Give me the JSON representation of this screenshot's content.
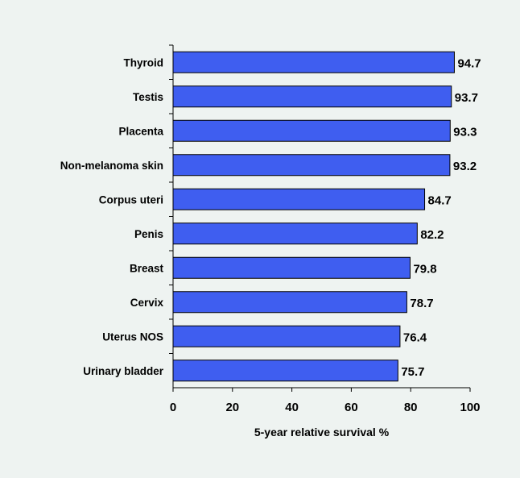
{
  "chart_data": {
    "type": "bar",
    "orientation": "horizontal",
    "categories": [
      "Thyroid",
      "Testis",
      "Placenta",
      "Non-melanoma skin",
      "Corpus uteri",
      "Penis",
      "Breast",
      "Cervix",
      "Uterus NOS",
      "Urinary bladder"
    ],
    "values": [
      94.7,
      93.7,
      93.3,
      93.2,
      84.7,
      82.2,
      79.8,
      78.7,
      76.4,
      75.7
    ],
    "value_labels": [
      "94.7",
      "93.7",
      "93.3",
      "93.2",
      "84.7",
      "82.2",
      "79.8",
      "78.7",
      "76.4",
      "75.7"
    ],
    "xlabel": "5-year relative survival %",
    "xlim": [
      0,
      100
    ],
    "xticks": [
      "0",
      "20",
      "40",
      "60",
      "80",
      "100"
    ],
    "grid": false,
    "bar_color": "#3f5ef0",
    "background_color": "#eef3f1"
  }
}
